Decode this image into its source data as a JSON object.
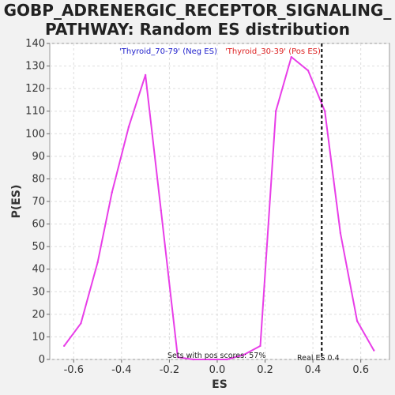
{
  "chart_data": {
    "type": "line",
    "title_lines": [
      "GOBP_ADRENERGIC_RECEPTOR_SIGNALING_",
      "PATHWAY: Random ES distribution"
    ],
    "xlabel": "ES",
    "ylabel": "P(ES)",
    "xlim": [
      -0.7,
      0.72
    ],
    "ylim": [
      0,
      140
    ],
    "xticks": [
      -0.6,
      -0.4,
      -0.2,
      0.0,
      0.2,
      0.4,
      0.6
    ],
    "xtick_labels": [
      "-0.6",
      "-0.4",
      "-0.2",
      "0.0",
      "0.2",
      "0.4",
      "0.6"
    ],
    "yticks": [
      0,
      10,
      20,
      30,
      40,
      50,
      60,
      70,
      80,
      90,
      100,
      110,
      120,
      130,
      140
    ],
    "ytick_labels": [
      "0",
      "10",
      "20",
      "30",
      "40",
      "50",
      "60",
      "70",
      "80",
      "90",
      "100",
      "110",
      "120",
      "130",
      "140"
    ],
    "grid": true,
    "series": [
      {
        "color": "#e83ee8",
        "x": [
          -0.64,
          -0.57,
          -0.5,
          -0.44,
          -0.37,
          -0.3,
          -0.235,
          -0.165,
          -0.1,
          -0.03,
          0.04,
          0.11,
          0.18,
          0.245,
          0.31,
          0.38,
          0.45,
          0.515,
          0.585,
          0.655
        ],
        "y": [
          6,
          16,
          43,
          74,
          103,
          126,
          66,
          1,
          0,
          0,
          0,
          2,
          6,
          110,
          134,
          128,
          110,
          56,
          17,
          4
        ]
      }
    ],
    "legend": [
      {
        "label": "'Thyroid_70-79' (Neg ES)",
        "color": "#2222cc"
      },
      {
        "label": "'Thyroid_30-39' (Pos ES)",
        "color": "#dd2222"
      }
    ],
    "legend_placement": "top-center",
    "real_es": {
      "value": 0.437,
      "label": "Real ES 0.4"
    },
    "annotation": "Sets with pos scores: 57%"
  }
}
